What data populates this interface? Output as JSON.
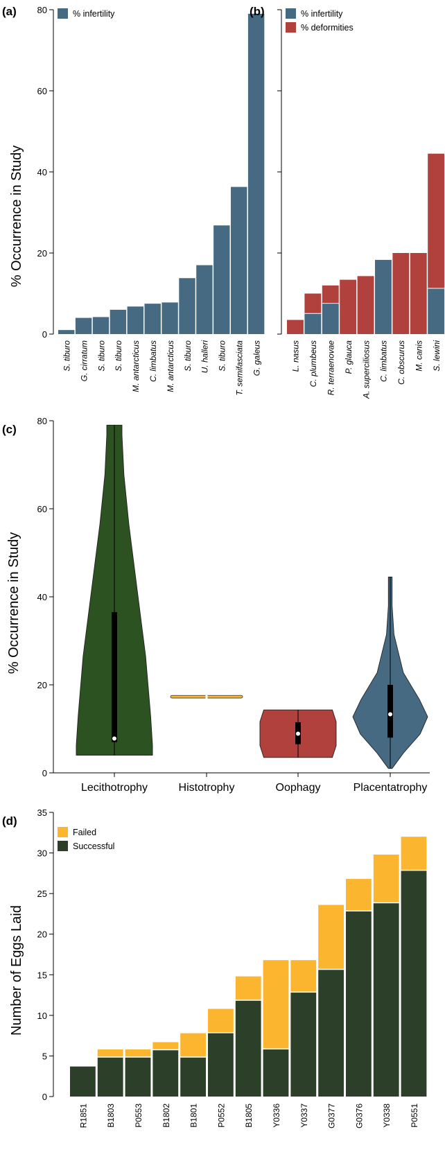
{
  "colors": {
    "infertility": "#456a82",
    "deformities": "#b0413c",
    "lecithotrophy": "#2d5221",
    "histotrophy": "#f4b63f",
    "oophagy": "#b0413c",
    "placentatrophy": "#456a82",
    "failed": "#fbb52e",
    "successful": "#2c3f29"
  },
  "chart_data": [
    {
      "panel": "(a)",
      "type": "bar",
      "ylabel": "% Occurrence in Study",
      "ylim": [
        0,
        80
      ],
      "yticks": [
        0,
        20,
        40,
        60,
        80
      ],
      "legend": [
        "% infertility"
      ],
      "legend_position": "top-left",
      "categories": [
        "S. tiburo",
        "G. cirratum",
        "S. tiburo",
        "S. tiburo",
        "M. antarcticus",
        "C. limbatus",
        "M. antarcticus",
        "S. tiburo",
        "U. halleri",
        "S. tiburo",
        "T. semifasciata",
        "G. galeus"
      ],
      "series": [
        {
          "name": "% infertility",
          "values": [
            1,
            4,
            4.2,
            6,
            6.8,
            7.5,
            7.8,
            13.8,
            17,
            26.8,
            36.3,
            79
          ]
        }
      ]
    },
    {
      "panel": "(b)",
      "type": "bar",
      "ylim": [
        0,
        80
      ],
      "legend": [
        "% infertility",
        "% deformities"
      ],
      "legend_position": "top-left",
      "categories": [
        "L. nasus",
        "C. plumbeus",
        "R. terraenovae",
        "P. glauca",
        "A. superciliosus",
        "C. limbatus",
        "C. obscurus",
        "M. canis",
        "S. lewini"
      ],
      "series": [
        {
          "name": "% infertility",
          "values": [
            0,
            5,
            7.5,
            0,
            0,
            18.3,
            0,
            0,
            11.2
          ]
        },
        {
          "name": "% deformities",
          "values": [
            3.5,
            5,
            4.5,
            13.4,
            14.3,
            0,
            20,
            20,
            33.3
          ]
        }
      ]
    },
    {
      "panel": "(c)",
      "type": "violin",
      "ylabel": "% Occurrence in Study",
      "ylim": [
        0,
        80
      ],
      "yticks": [
        0,
        20,
        40,
        60,
        80
      ],
      "categories": [
        "Lecithotrophy",
        "Histotrophy",
        "Oophagy",
        "Placentatrophy"
      ],
      "groups": [
        {
          "name": "Lecithotrophy",
          "min": 4,
          "max": 79,
          "q1": 7,
          "median": 7.8,
          "q3": 36.5
        },
        {
          "name": "Histotrophy",
          "min": 17,
          "max": 17.6,
          "q1": 17.3,
          "median": 17.3,
          "q3": 17.3
        },
        {
          "name": "Oophagy",
          "min": 3.5,
          "max": 14.3,
          "q1": 6.5,
          "median": 8.9,
          "q3": 11.5
        },
        {
          "name": "Placentatrophy",
          "min": 1,
          "max": 44.5,
          "q1": 8,
          "median": 13.3,
          "q3": 20
        }
      ]
    },
    {
      "panel": "(d)",
      "type": "bar",
      "stacked": true,
      "ylabel": "Number of Eggs Laid",
      "ylim": [
        0,
        35
      ],
      "yticks": [
        0,
        5,
        10,
        15,
        20,
        25,
        30,
        35
      ],
      "legend": [
        "Failed",
        "Successful"
      ],
      "legend_position": "top-left",
      "categories": [
        "R1851",
        "B1803",
        "P0553",
        "B1802",
        "B1801",
        "P0552",
        "B1805",
        "Y0336",
        "Y0337",
        "G0377",
        "G0376",
        "Y0338",
        "P0551"
      ],
      "series": [
        {
          "name": "Successful",
          "values": [
            3.7,
            4.8,
            4.8,
            5.7,
            4.8,
            7.8,
            11.8,
            5.8,
            12.8,
            15.6,
            22.8,
            23.8,
            27.8
          ]
        },
        {
          "name": "Failed",
          "values": [
            0,
            1,
            1,
            1,
            3,
            3,
            3,
            11,
            4,
            8,
            4,
            6,
            4.2
          ]
        }
      ]
    }
  ]
}
